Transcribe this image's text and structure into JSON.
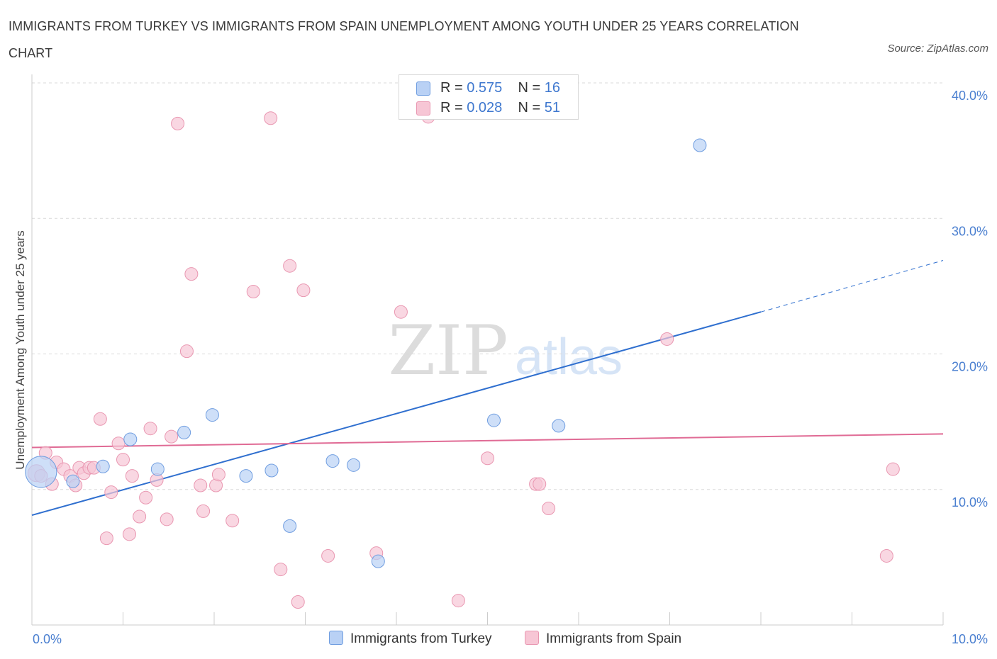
{
  "title": "IMMIGRANTS FROM TURKEY VS IMMIGRANTS FROM SPAIN UNEMPLOYMENT AMONG YOUTH UNDER 25 YEARS CORRELATION CHART",
  "source": "Source: ZipAtlas.com",
  "watermark": {
    "zip": "ZIP",
    "atlas": "atlas"
  },
  "legend": {
    "turkey": {
      "r_label": "R = ",
      "r_value": "0.575",
      "n_label": "N = ",
      "n_value": "16"
    },
    "spain": {
      "r_label": "R = ",
      "r_value": "0.028",
      "n_label": "N = ",
      "n_value": "51"
    }
  },
  "colors": {
    "turkey_fill": "#b9d1f5",
    "turkey_stroke": "#6f9de0",
    "turkey_line": "#2f6fcf",
    "spain_fill": "#f7c6d5",
    "spain_stroke": "#e997b1",
    "spain_line": "#e06b95",
    "axis_text": "#4a7fd0",
    "grid": "#d9d9d9"
  },
  "chart_data": {
    "type": "scatter",
    "title": "IMMIGRANTS FROM TURKEY VS IMMIGRANTS FROM SPAIN UNEMPLOYMENT AMONG YOUTH UNDER 25 YEARS CORRELATION CHART",
    "xlabel": "",
    "ylabel": "Unemployment Among Youth under 25 years",
    "xlim": [
      0,
      10
    ],
    "ylim": [
      0,
      40
    ],
    "x_tick_labels": [
      {
        "value": 0,
        "label": "0.0%"
      },
      {
        "value": 10,
        "label": "10.0%"
      }
    ],
    "y_tick_labels": [
      {
        "value": 10,
        "label": "10.0%"
      },
      {
        "value": 20,
        "label": "20.0%"
      },
      {
        "value": 30,
        "label": "30.0%"
      },
      {
        "value": 40,
        "label": "40.0%"
      }
    ],
    "grid": true,
    "series": [
      {
        "name": "Immigrants from Turkey",
        "color": "#6f9de0",
        "points": [
          [
            0.1,
            11.3,
            22
          ],
          [
            0.45,
            10.6,
            9
          ],
          [
            0.78,
            11.7,
            9
          ],
          [
            1.08,
            13.7,
            9
          ],
          [
            1.38,
            11.5,
            9
          ],
          [
            1.67,
            14.2,
            9
          ],
          [
            1.98,
            15.5,
            9
          ],
          [
            2.35,
            11.0,
            9
          ],
          [
            2.63,
            11.4,
            9
          ],
          [
            2.83,
            7.3,
            9
          ],
          [
            3.3,
            12.1,
            9
          ],
          [
            3.53,
            11.8,
            9
          ],
          [
            3.8,
            4.7,
            9
          ],
          [
            5.07,
            15.1,
            9
          ],
          [
            5.78,
            14.7,
            9
          ],
          [
            7.33,
            35.4,
            9
          ]
        ],
        "trend": {
          "x0": 0,
          "y0": 8.1,
          "x1": 8.0,
          "y1": 23.1,
          "dash_x1": 10.0,
          "dash_y1": 26.9
        }
      },
      {
        "name": "Immigrants from Spain",
        "color": "#e997b1",
        "points": [
          [
            0.05,
            11.2,
            12
          ],
          [
            0.15,
            12.7,
            9
          ],
          [
            0.22,
            10.4,
            9
          ],
          [
            0.27,
            12.0,
            9
          ],
          [
            0.35,
            11.5,
            9
          ],
          [
            0.42,
            11.0,
            9
          ],
          [
            0.48,
            10.3,
            9
          ],
          [
            0.52,
            11.6,
            9
          ],
          [
            0.57,
            11.2,
            9
          ],
          [
            0.63,
            11.6,
            9
          ],
          [
            0.68,
            11.6,
            9
          ],
          [
            0.75,
            15.2,
            9
          ],
          [
            0.82,
            6.4,
            9
          ],
          [
            0.87,
            9.8,
            9
          ],
          [
            0.95,
            13.4,
            9
          ],
          [
            1.0,
            12.2,
            9
          ],
          [
            1.07,
            6.7,
            9
          ],
          [
            1.1,
            11.0,
            9
          ],
          [
            1.18,
            8.0,
            9
          ],
          [
            1.25,
            9.4,
            9
          ],
          [
            1.3,
            14.5,
            9
          ],
          [
            1.37,
            10.7,
            9
          ],
          [
            1.48,
            7.8,
            9
          ],
          [
            1.53,
            13.9,
            9
          ],
          [
            1.6,
            37.0,
            9
          ],
          [
            1.7,
            20.2,
            9
          ],
          [
            1.75,
            25.9,
            9
          ],
          [
            1.85,
            10.3,
            9
          ],
          [
            1.88,
            8.4,
            9
          ],
          [
            2.02,
            10.3,
            9
          ],
          [
            2.05,
            11.1,
            9
          ],
          [
            2.2,
            7.7,
            9
          ],
          [
            2.43,
            24.6,
            9
          ],
          [
            2.62,
            37.4,
            9
          ],
          [
            2.73,
            4.1,
            9
          ],
          [
            2.83,
            26.5,
            9
          ],
          [
            2.92,
            1.7,
            9
          ],
          [
            2.98,
            24.7,
            9
          ],
          [
            3.25,
            5.1,
            9
          ],
          [
            3.78,
            5.3,
            9
          ],
          [
            4.05,
            23.1,
            9
          ],
          [
            4.35,
            37.5,
            9
          ],
          [
            4.68,
            1.8,
            9
          ],
          [
            5.0,
            12.3,
            9
          ],
          [
            5.53,
            10.4,
            9
          ],
          [
            5.57,
            10.4,
            9
          ],
          [
            5.67,
            8.6,
            9
          ],
          [
            6.97,
            21.1,
            9
          ],
          [
            9.38,
            5.1,
            9
          ],
          [
            9.45,
            11.5,
            9
          ],
          [
            0.1,
            11.0,
            9
          ]
        ],
        "trend": {
          "x0": 0,
          "y0": 13.1,
          "x1": 10.0,
          "y1": 14.1
        }
      }
    ],
    "legend_entries": [
      "Immigrants from Turkey",
      "Immigrants from Spain"
    ],
    "legend_position": "top-center"
  }
}
